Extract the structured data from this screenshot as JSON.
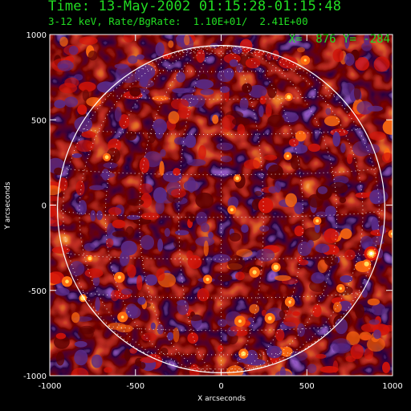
{
  "header": {
    "time_title": "Time: 13-May-2002 01:15:28-01:15:48",
    "energy_line": "3-12 keV, Rate/BgRate:  1.10E+01/  2.41E+00",
    "coord_readout": "X=  876 Y= -284"
  },
  "axes": {
    "x_title": "X arcseconds",
    "y_title": "Y arcseconds",
    "x_ticks": [
      {
        "value": -1000,
        "label": "-1000"
      },
      {
        "value": -500,
        "label": "-500"
      },
      {
        "value": 0,
        "label": "0"
      },
      {
        "value": 500,
        "label": "500"
      },
      {
        "value": 1000,
        "label": "1000"
      }
    ],
    "y_ticks": [
      {
        "value": 1000,
        "label": "1000"
      },
      {
        "value": 500,
        "label": "500"
      },
      {
        "value": 0,
        "label": "0"
      },
      {
        "value": -500,
        "label": "-500"
      },
      {
        "value": -1000,
        "label": "-1000"
      }
    ],
    "x_range": [
      -1000,
      1000
    ],
    "y_range": [
      -1000,
      1000
    ]
  },
  "map": {
    "solar_limb_radius_arcsec": 955,
    "colors": {
      "background": "#000000",
      "purple": "#5a2a86",
      "dark_red": "#5a0000",
      "red": "#d4140a",
      "orange": "#ff6a10",
      "yellow": "#ffe060",
      "white": "#ffffff",
      "text_green": "#22dd22"
    }
  }
}
